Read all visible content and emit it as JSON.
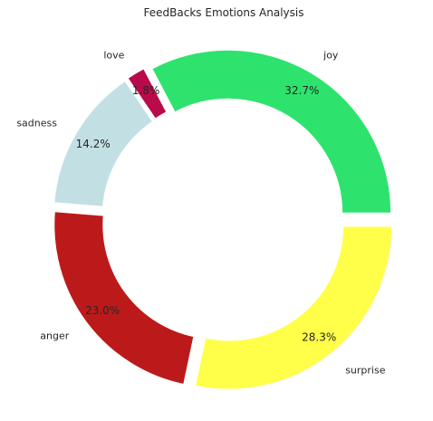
{
  "chart_data": {
    "type": "pie",
    "variant": "donut",
    "title": "FeedBacks Emotions Analysis",
    "categories": [
      "joy",
      "love",
      "sadness",
      "anger",
      "surprise"
    ],
    "values": [
      32.7,
      1.8,
      14.2,
      23.0,
      28.3
    ],
    "percent_labels": [
      "32.7%",
      "1.8%",
      "14.2%",
      "23.0%",
      "28.3%"
    ],
    "colors": [
      "#2ee36d",
      "#b90a4b",
      "#c2e0e4",
      "#bc1a1a",
      "#ffff4a"
    ],
    "start_angle": "0 degrees (3 o'clock)",
    "direction": "counterclockwise",
    "exploded": true,
    "legend": "none"
  }
}
